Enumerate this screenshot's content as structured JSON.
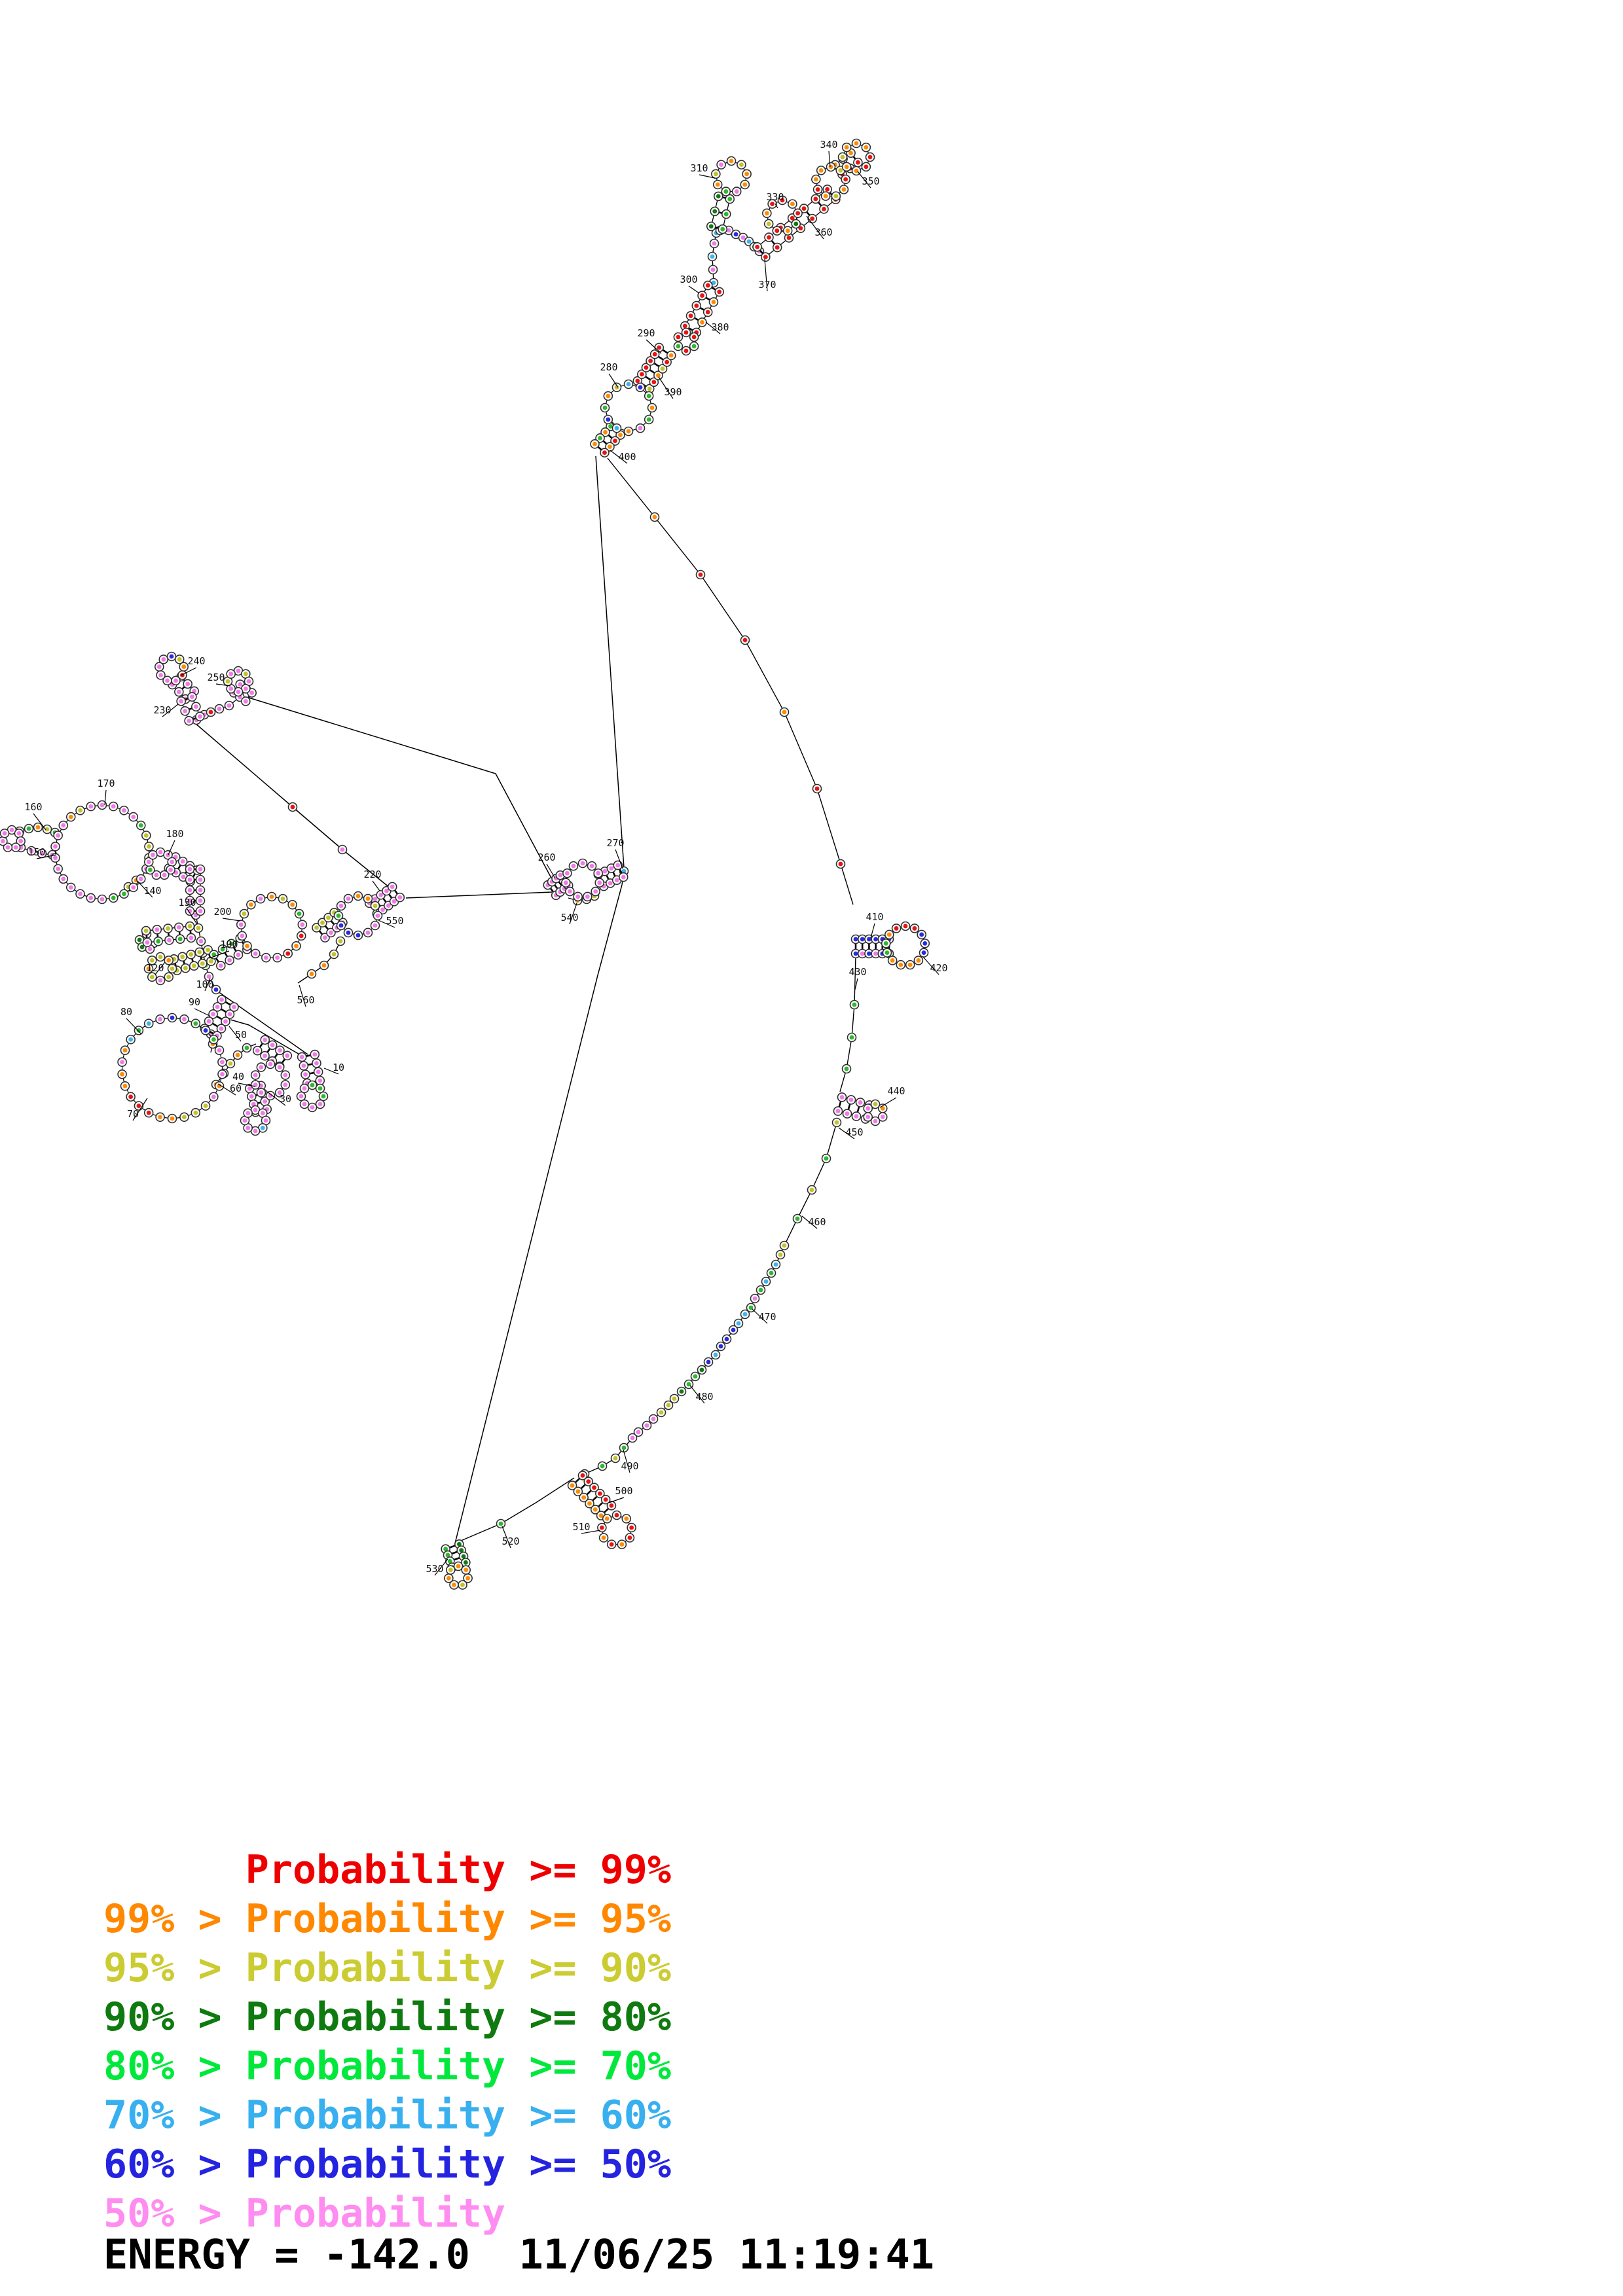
{
  "legend": {
    "rows": [
      {
        "text": "Probability >= 99%",
        "color": "#ee0000",
        "indent": true
      },
      {
        "text": "99% > Probability >= 95%",
        "color": "#ff8800",
        "indent": false
      },
      {
        "text": "95% > Probability >= 90%",
        "color": "#cbcb32",
        "indent": false
      },
      {
        "text": "90% > Probability >= 80%",
        "color": "#0f7a0f",
        "indent": false
      },
      {
        "text": "80% > Probability >= 70%",
        "color": "#00e83c",
        "indent": false
      },
      {
        "text": "70% > Probability >= 60%",
        "color": "#38b0f0",
        "indent": false
      },
      {
        "text": "60% > Probability >= 50%",
        "color": "#2424e0",
        "indent": false
      },
      {
        "text": "50% > Probability",
        "color": "#ff8cf0",
        "indent": false
      }
    ],
    "energy": "ENERGY = -142.0  11/06/25 11:19:41"
  },
  "palette": {
    "P": "#f07ae8",
    "R": "#e81414",
    "O": "#ff8c00",
    "Y": "#c2c22a",
    "G": "#2eb82e",
    "D": "#0f7a0f",
    "C": "#3cb4ee",
    "B": "#2a2ae0"
  },
  "structure": {
    "loops": [
      [
        156,
        1302,
        72,
        26,
        "PPPPGYYYPPPGGPPPPPPPPPPOYP"
      ],
      [
        245,
        1320,
        18,
        9,
        "PPPPPPGPP"
      ],
      [
        245,
        1480,
        18,
        8,
        "YOYYPYOY"
      ],
      [
        415,
        1417,
        47,
        17,
        "OYOGPRORPPPOPPYOP"
      ],
      [
        547,
        1399,
        30,
        12,
        "OOYPPPBBBGPP"
      ],
      [
        18,
        1282,
        14,
        7,
        "PPPPPPP"
      ],
      [
        263,
        1632,
        77,
        26,
        "BPGBGPPPOPYYYOORRROOPOCGCP"
      ],
      [
        413,
        1650,
        24,
        10,
        "PPPPPPPPPP"
      ],
      [
        390,
        1712,
        16,
        8,
        "PPPCPPPP"
      ],
      [
        477,
        1675,
        17,
        8,
        "GGGPPPPP"
      ],
      [
        262,
        1022,
        19,
        9,
        "BYORPPPPP"
      ],
      [
        364,
        1041,
        16,
        8,
        "PYPPPPYP"
      ],
      [
        890,
        1345,
        26,
        11,
        "PPPPPPPPPPP"
      ],
      [
        960,
        623,
        36,
        12,
        "CBGOGPOCBGOY"
      ],
      [
        1048,
        522,
        14,
        6,
        "RRGRGR"
      ],
      [
        1117,
        270,
        24,
        9,
        "OYOOPGOYP"
      ],
      [
        1195,
        330,
        24,
        9,
        "RORDORYOR"
      ],
      [
        1269,
        278,
        23,
        9,
        "OYROYOROO"
      ],
      [
        1308,
        240,
        21,
        8,
        "OORROOYO"
      ],
      [
        1383,
        1445,
        30,
        13,
        "RRBBBOOOOGGOR"
      ],
      [
        1337,
        1700,
        13,
        6,
        "YOPPPP"
      ],
      [
        942,
        2338,
        23,
        9,
        "RORRORORO"
      ],
      [
        700,
        2408,
        15,
        7,
        "OOOYOOY"
      ]
    ],
    "helices": [
      [
        348,
        1533,
        322,
        1577,
        5,
        11,
        "P"
      ],
      [
        263,
        1318,
        296,
        1338,
        4,
        10,
        "P"
      ],
      [
        298,
        1328,
        298,
        1392,
        5,
        8,
        "P"
      ],
      [
        224,
        1431,
        291,
        1424,
        5,
        9,
        "PYGP"
      ],
      [
        268,
        1474,
        320,
        1460,
        5,
        9,
        "Y"
      ],
      [
        332,
        1467,
        372,
        1442,
        4,
        10,
        "PG"
      ],
      [
        490,
        1425,
        517,
        1402,
        4,
        10,
        "PY"
      ],
      [
        399,
        1597,
        433,
        1621,
        4,
        10,
        "P"
      ],
      [
        390,
        1661,
        399,
        1697,
        4,
        9,
        "P"
      ],
      [
        471,
        1613,
        479,
        1653,
        4,
        10,
        "P"
      ],
      [
        270,
        1040,
        290,
        1062,
        3,
        9,
        "P"
      ],
      [
        285,
        1068,
        297,
        1098,
        3,
        9,
        "P"
      ],
      [
        362,
        1052,
        380,
        1065,
        3,
        8,
        "P"
      ],
      [
        843,
        1360,
        862,
        1345,
        4,
        10,
        "P"
      ],
      [
        918,
        1345,
        948,
        1331,
        4,
        10,
        "P"
      ],
      [
        983,
        588,
        1016,
        537,
        6,
        11,
        "YRRROR"
      ],
      [
        1055,
        503,
        1090,
        441,
        5,
        10,
        "RROR"
      ],
      [
        940,
        658,
        916,
        685,
        4,
        10,
        "GOOR"
      ],
      [
        1095,
        348,
        1106,
        302,
        3,
        9,
        "GD"
      ],
      [
        1163,
        385,
        1270,
        297,
        7,
        10,
        "R"
      ],
      [
        1281,
        259,
        1305,
        241,
        3,
        9,
        "RO"
      ],
      [
        1307,
        1446,
        1358,
        1446,
        6,
        11,
        "BBPB"
      ],
      [
        1283,
        1687,
        1325,
        1699,
        4,
        11,
        "P"
      ],
      [
        882,
        2262,
        926,
        2308,
        6,
        11,
        "OR"
      ],
      [
        691,
        2363,
        701,
        2391,
        4,
        11,
        "GD"
      ],
      [
        570,
        1388,
        605,
        1363,
        5,
        10,
        "P"
      ]
    ],
    "chains": [
      {
        "p": [
          [
            299,
            1398
          ],
          [
            303,
            1418
          ],
          [
            307,
            1438
          ],
          [
            310,
            1456
          ],
          [
            314,
            1475
          ],
          [
            319,
            1492
          ],
          [
            330,
            1512
          ]
        ],
        "c": "PYPYGPB"
      },
      {
        "p": [
          [
            1090,
            432
          ],
          [
            1089,
            412
          ],
          [
            1088,
            392
          ],
          [
            1091,
            372
          ],
          [
            1094,
            356
          ]
        ],
        "c": "CPCP"
      },
      {
        "p": [
          [
            1100,
            352
          ],
          [
            1113,
            352
          ],
          [
            1124,
            358
          ],
          [
            1135,
            363
          ],
          [
            1144,
            369
          ],
          [
            1152,
            377
          ],
          [
            1160,
            384
          ]
        ],
        "c": "PPBPCG"
      },
      {
        "p": [
          [
            928,
            700
          ],
          [
            1000,
            790
          ],
          [
            1070,
            878
          ],
          [
            1138,
            978
          ],
          [
            1198,
            1088
          ],
          [
            1248,
            1205
          ],
          [
            1284,
            1320
          ],
          [
            1303,
            1382
          ]
        ],
        "c": "-ORRORR-"
      },
      {
        "p": [
          [
            1307,
            1460
          ],
          [
            1305,
            1535
          ],
          [
            1301,
            1585
          ],
          [
            1293,
            1633
          ],
          [
            1283,
            1668
          ]
        ],
        "c": "-GGG-"
      },
      {
        "p": [
          [
            1278,
            1715
          ],
          [
            1262,
            1770
          ],
          [
            1240,
            1818
          ],
          [
            1218,
            1862
          ],
          [
            1198,
            1903
          ],
          [
            1192,
            1917
          ],
          [
            1185,
            1932
          ],
          [
            1178,
            1945
          ],
          [
            1170,
            1958
          ],
          [
            1162,
            1971
          ],
          [
            1153,
            1984
          ],
          [
            1147,
            1998
          ],
          [
            1138,
            2008
          ],
          [
            1128,
            2022
          ],
          [
            1120,
            2032
          ],
          [
            1110,
            2046
          ],
          [
            1101,
            2057
          ],
          [
            1093,
            2070
          ],
          [
            1082,
            2081
          ],
          [
            1072,
            2093
          ],
          [
            1062,
            2103
          ],
          [
            1052,
            2115
          ],
          [
            1041,
            2126
          ],
          [
            1030,
            2137
          ],
          [
            1021,
            2147
          ],
          [
            1010,
            2158
          ],
          [
            998,
            2168
          ],
          [
            988,
            2178
          ],
          [
            975,
            2188
          ],
          [
            966,
            2197
          ],
          [
            953,
            2212
          ],
          [
            940,
            2228
          ],
          [
            920,
            2240
          ],
          [
            893,
            2252
          ]
        ],
        "c": "YGYGYYCGCGAGCCBBBCBDGGDYYYPPPPG"
      },
      {
        "p": [
          [
            877,
            2258
          ],
          [
            820,
            2295
          ],
          [
            765,
            2328
          ],
          [
            697,
            2357
          ]
        ],
        "c": "--G-"
      },
      {
        "p": [
          [
            520,
            1438
          ],
          [
            510,
            1458
          ],
          [
            495,
            1475
          ],
          [
            476,
            1488
          ],
          [
            455,
            1502
          ]
        ],
        "c": "YYOO-"
      },
      {
        "p": [
          [
            330,
            1657
          ],
          [
            342,
            1640
          ],
          [
            352,
            1625
          ],
          [
            363,
            1612
          ],
          [
            377,
            1601
          ],
          [
            391,
            1595
          ]
        ],
        "c": "OYYOG-"
      },
      {
        "p": [
          [
            322,
            1580
          ],
          [
            325,
            1595
          ],
          [
            322,
            1608
          ]
        ],
        "c": "PO-"
      },
      {
        "p": [
          [
            300,
            1100
          ],
          [
            312,
            1092
          ],
          [
            322,
            1088
          ],
          [
            335,
            1083
          ],
          [
            350,
            1078
          ],
          [
            360,
            1070
          ]
        ],
        "c": "PPRPP-"
      },
      {
        "p": [
          [
            30,
            1270
          ],
          [
            44,
            1266
          ],
          [
            58,
            1264
          ],
          [
            72,
            1267
          ],
          [
            84,
            1272
          ]
        ],
        "c": "PGOYG"
      },
      {
        "p": [
          [
            32,
            1295
          ],
          [
            48,
            1300
          ],
          [
            64,
            1304
          ],
          [
            80,
            1306
          ]
        ],
        "c": "PPPP"
      },
      {
        "p": [
          [
            868,
            1372
          ],
          [
            882,
            1376
          ],
          [
            896,
            1374
          ],
          [
            908,
            1369
          ]
        ],
        "c": "-OPY"
      },
      {
        "p": [
          [
            953,
            1331
          ],
          [
            950,
            1352
          ]
        ],
        "c": "C-"
      },
      {
        "p": [
          [
            196,
            1355
          ],
          [
            208,
            1345
          ]
        ],
        "c": "YO"
      },
      {
        "p": [
          [
            224,
            1427
          ],
          [
            213,
            1436
          ],
          [
            217,
            1447
          ],
          [
            229,
            1450
          ],
          [
            240,
            1446
          ]
        ],
        "c": "PDDP-"
      },
      {
        "p": [
          [
            447,
            1233
          ],
          [
            523,
            1298
          ]
        ],
        "c": "RP"
      }
    ],
    "lines": [
      [
        [
          910,
          697
        ],
        [
          953,
          1326
        ]
      ],
      [
        [
          950,
          1352
        ],
        [
          913,
          1490
        ],
        [
          695,
          2358
        ]
      ],
      [
        [
          620,
          1372
        ],
        [
          843,
          1363
        ]
      ],
      [
        [
          380,
          1066
        ],
        [
          757,
          1182
        ],
        [
          845,
          1347
        ]
      ],
      [
        [
          298,
          1105
        ],
        [
          447,
          1233
        ],
        [
          523,
          1298
        ],
        [
          600,
          1360
        ]
      ],
      [
        [
          333,
          1515
        ],
        [
          470,
          1611
        ]
      ],
      [
        [
          352,
          1558
        ],
        [
          380,
          1566
        ],
        [
          466,
          1616
        ]
      ]
    ],
    "labels": [
      [
        "10",
        517,
        1636,
        495,
        1632
      ],
      [
        "30",
        436,
        1684,
        408,
        1668
      ],
      [
        "40",
        364,
        1650,
        390,
        1660
      ],
      [
        "50",
        368,
        1586,
        350,
        1568
      ],
      [
        "60",
        360,
        1668,
        333,
        1656
      ],
      [
        "70",
        203,
        1707,
        225,
        1678
      ],
      [
        "80",
        193,
        1551,
        216,
        1580
      ],
      [
        "90",
        297,
        1536,
        320,
        1552
      ],
      [
        "100",
        313,
        1509,
        321,
        1495
      ],
      [
        "120",
        237,
        1484,
        252,
        1470
      ],
      [
        "130",
        286,
        1384,
        301,
        1412
      ],
      [
        "140",
        233,
        1366,
        210,
        1346
      ],
      [
        "150",
        56,
        1307,
        86,
        1306
      ],
      [
        "160",
        51,
        1238,
        70,
        1268
      ],
      [
        "170",
        162,
        1202,
        160,
        1230
      ],
      [
        "180",
        267,
        1279,
        257,
        1306
      ],
      [
        "190",
        350,
        1448,
        320,
        1464
      ],
      [
        "200",
        340,
        1398,
        367,
        1407
      ],
      [
        "220",
        569,
        1341,
        580,
        1361
      ],
      [
        "230",
        248,
        1090,
        272,
        1076
      ],
      [
        "240",
        300,
        1015,
        276,
        1032
      ],
      [
        "250",
        330,
        1040,
        352,
        1048
      ],
      [
        "260",
        835,
        1315,
        848,
        1342
      ],
      [
        "270",
        940,
        1293,
        951,
        1327
      ],
      [
        "280",
        930,
        566,
        944,
        592
      ],
      [
        "290",
        987,
        514,
        1010,
        540
      ],
      [
        "300",
        1052,
        432,
        1068,
        448
      ],
      [
        "310",
        1068,
        262,
        1092,
        272
      ],
      [
        "330",
        1184,
        306,
        1188,
        318
      ],
      [
        "340",
        1266,
        226,
        1268,
        255
      ],
      [
        "350",
        1330,
        282,
        1310,
        262
      ],
      [
        "360",
        1258,
        360,
        1232,
        330
      ],
      [
        "370",
        1172,
        440,
        1168,
        396
      ],
      [
        "380",
        1100,
        505,
        1078,
        492
      ],
      [
        "390",
        1028,
        604,
        1006,
        576
      ],
      [
        "400",
        958,
        703,
        932,
        688
      ],
      [
        "410",
        1336,
        1406,
        1330,
        1433
      ],
      [
        "420",
        1434,
        1484,
        1410,
        1462
      ],
      [
        "430",
        1310,
        1490,
        1306,
        1512
      ],
      [
        "440",
        1369,
        1672,
        1344,
        1692
      ],
      [
        "450",
        1305,
        1735,
        1281,
        1723
      ],
      [
        "460",
        1248,
        1872,
        1225,
        1858
      ],
      [
        "470",
        1172,
        2017,
        1149,
        2000
      ],
      [
        "480",
        1076,
        2139,
        1054,
        2117
      ],
      [
        "490",
        962,
        2245,
        952,
        2215
      ],
      [
        "500",
        953,
        2283,
        930,
        2296
      ],
      [
        "510",
        888,
        2338,
        917,
        2338
      ],
      [
        "520",
        780,
        2360,
        767,
        2332
      ],
      [
        "530",
        664,
        2402,
        684,
        2382
      ],
      [
        "540",
        870,
        1407,
        881,
        1380
      ],
      [
        "550",
        603,
        1412,
        578,
        1406
      ],
      [
        "560",
        467,
        1533,
        457,
        1505
      ]
    ]
  }
}
